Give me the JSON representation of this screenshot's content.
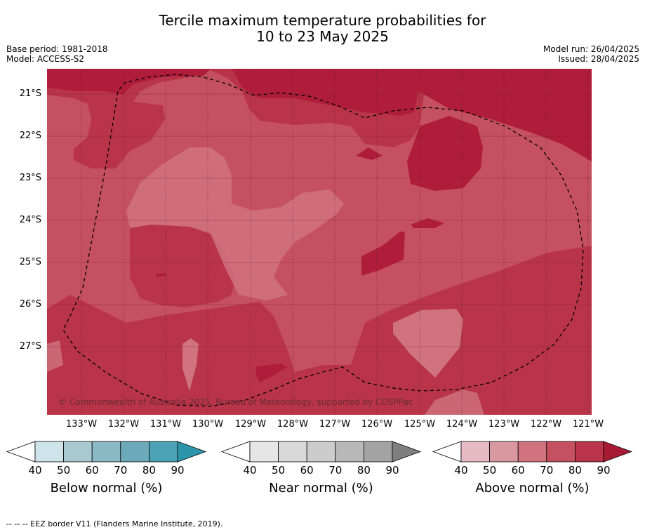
{
  "title": {
    "line1": "Tercile maximum temperature probabilities for",
    "line2": "10 to 23 May 2025"
  },
  "meta": {
    "base_period": "Base period: 1981-2018",
    "model": "Model: ACCESS-S2",
    "model_run": "Model run: 26/04/2025",
    "issued": "Issued: 28/04/2025"
  },
  "map": {
    "copyright": "© Commonwealth of Australia 2025, Bureau of Meteorology, supported by COSPPac",
    "lat_labels": [
      "21°S",
      "22°S",
      "23°S",
      "24°S",
      "25°S",
      "26°S",
      "27°S"
    ],
    "lon_labels": [
      "133°W",
      "132°W",
      "131°W",
      "130°W",
      "129°W",
      "128°W",
      "127°W",
      "126°W",
      "125°W",
      "124°W",
      "123°W",
      "122°W",
      "121°W"
    ],
    "colors": {
      "above_60_70": "#d0737e",
      "above_70_80": "#c5505f",
      "above_80_90": "#b93449",
      "above_90": "#b01d3b",
      "eez_border": "#000000"
    }
  },
  "colorbars": [
    {
      "label": "Below normal (%)",
      "ticks": [
        "40",
        "50",
        "60",
        "70",
        "80",
        "90"
      ],
      "colors": [
        "#ffffff",
        "#cfe4ea",
        "#a9c9d1",
        "#8bb8c5",
        "#6caab9",
        "#4aa2b4",
        "#2d95ab"
      ]
    },
    {
      "label": "Near normal (%)",
      "ticks": [
        "40",
        "50",
        "60",
        "70",
        "80",
        "90"
      ],
      "colors": [
        "#ffffff",
        "#e6e6e6",
        "#d9d9d9",
        "#cccccc",
        "#b8b8b8",
        "#a3a3a3",
        "#7f7f7f"
      ]
    },
    {
      "label": "Above normal (%)",
      "ticks": [
        "40",
        "50",
        "60",
        "70",
        "80",
        "90"
      ],
      "colors": [
        "#ffffff",
        "#e5bac2",
        "#d9989f",
        "#d0737e",
        "#c5505f",
        "#b93449",
        "#a81a34"
      ]
    }
  ],
  "footnote": "--  --  -- EEZ border V11 (Flanders Marine Institute, 2019)."
}
